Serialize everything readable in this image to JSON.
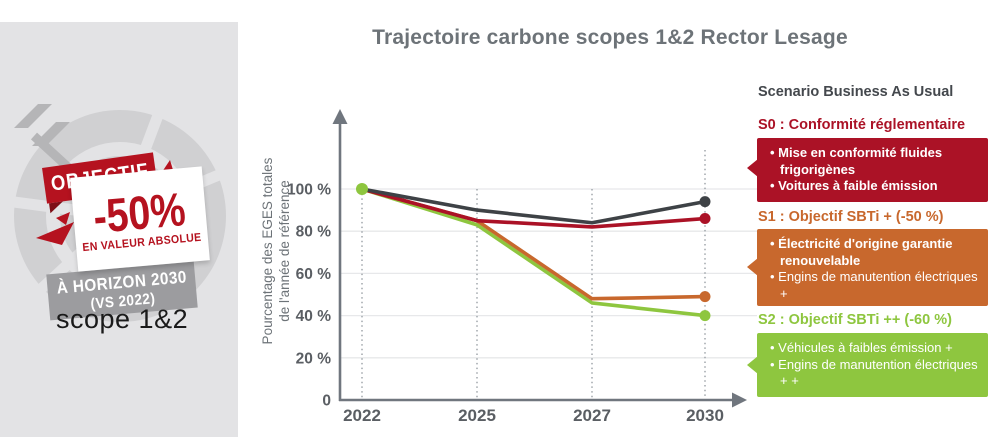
{
  "badge": {
    "ribbon_label": "OBJECTIF",
    "value": "-50%",
    "value_caption": "EN VALEUR ABSOLUE",
    "horizon_line1": "À HORIZON 2030",
    "horizon_line2": "(VS 2022)",
    "scope": "scope 1&2",
    "accent_red": "#b5121f",
    "panel_gray": "#e3e3e5",
    "banner_gray": "#9c9c9f"
  },
  "chart": {
    "title": "Trajectoire carbone scopes 1&2 Rector Lesage",
    "ylabel_line1": "Pourcentage des EGES totales",
    "ylabel_line2": "de l'année de référence"
  },
  "chart_data": {
    "type": "line",
    "title": "Trajectoire carbone scopes 1&2 Rector Lesage",
    "x": [
      "2022",
      "2025",
      "2027",
      "2030"
    ],
    "ylabel": "Pourcentage des EGES totales de l'année de référence",
    "yticks": [
      0,
      20,
      40,
      60,
      80,
      100
    ],
    "ylim": [
      0,
      115
    ],
    "grid": "horizontal, plus dotted vertical guide at each year",
    "legend_position": "right panel callouts",
    "series": [
      {
        "name": "Scenario Business As Usual",
        "values": [
          100,
          90,
          84,
          94
        ],
        "color": "#3e4246"
      },
      {
        "name": "S0 : Conformité réglementaire",
        "values": [
          100,
          85,
          82,
          86
        ],
        "color": "#ab1226"
      },
      {
        "name": "S1 : Objectif SBTi + (-50 %)",
        "values": [
          100,
          85,
          48,
          49
        ],
        "color": "#c8682d"
      },
      {
        "name": "S2 : Objectif SBTi ++ (-60 %)",
        "values": [
          100,
          83,
          46,
          40
        ],
        "color": "#8ec63f"
      }
    ],
    "axis_color": "#70767e",
    "gridline_color": "#e7e8ea",
    "tick_label_color": "#5a5e63"
  },
  "scenarios": {
    "header": "Scenario Business As Usual",
    "items": [
      {
        "id": "S0",
        "title": "S0 : Conformité réglementaire",
        "color": "#ab1226",
        "bullets": [
          "Mise en conformité fluides frigorigènes",
          "Voitures à faible émission"
        ]
      },
      {
        "id": "S1",
        "title": "S1 : Objectif SBTi + (-50 %)",
        "color": "#c8682d",
        "bullets": [
          "Électricité d'origine garantie renouvelable",
          "Engins de manutention électriques +"
        ]
      },
      {
        "id": "S2",
        "title": "S2 : Objectif SBTi ++ (-60 %)",
        "color": "#8ec63f",
        "bullets": [
          "Véhicules à faibles émission +",
          "Engins de manutention électriques + +"
        ]
      }
    ]
  }
}
